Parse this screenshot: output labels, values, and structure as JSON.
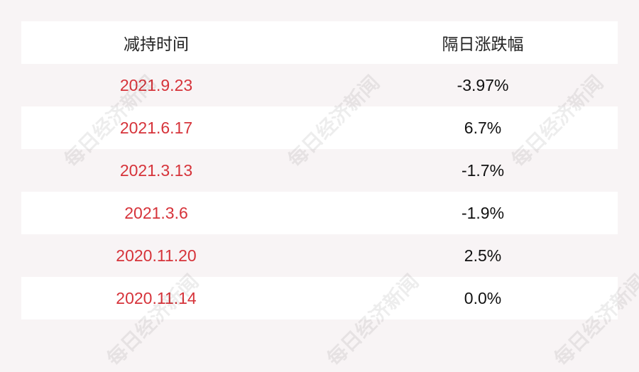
{
  "header": {
    "col1": "减持时间",
    "col2": "隔日涨跌幅"
  },
  "rows": [
    {
      "date": "2021.9.23",
      "change": "-3.97%"
    },
    {
      "date": "2021.6.17",
      "change": "6.7%"
    },
    {
      "date": "2021.3.13",
      "change": "-1.7%"
    },
    {
      "date": "2021.3.6",
      "change": "-1.9%"
    },
    {
      "date": "2020.11.20",
      "change": "2.5%"
    },
    {
      "date": "2020.11.14",
      "change": "0.0%"
    }
  ],
  "watermark": "每日经济新闻",
  "colors": {
    "date": "#d6333a",
    "background": "#f8f4f5"
  }
}
